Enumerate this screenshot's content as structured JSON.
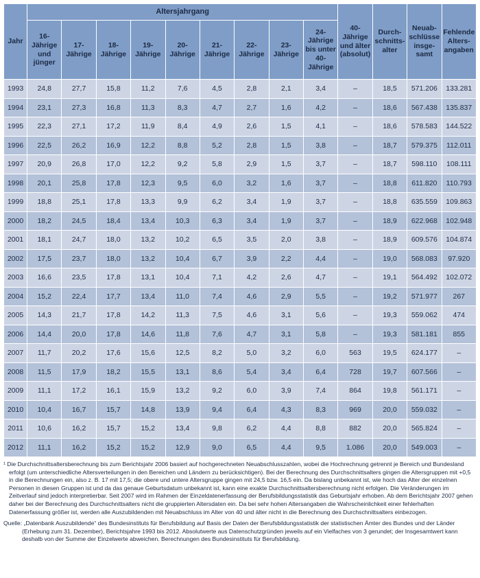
{
  "colors": {
    "header_bg": "#7f9dc7",
    "row_light": "#cdd5e5",
    "row_dark": "#b3c1d9",
    "grid_line": "#ffffff",
    "text": "#1c2a44"
  },
  "table": {
    "corner_header": "Jahr",
    "group_header": "Altersjahrgang",
    "age_headers": [
      "16-Jährige und jünger",
      "17-Jährige",
      "18-Jährige",
      "19-Jährige",
      "20-Jährige",
      "21-Jährige",
      "22-Jährige",
      "23-Jährige",
      "24-Jährige bis unter 40-Jährige"
    ],
    "right_headers": [
      "40-Jährige und älter (absolut)",
      "Durch­schnitts­alter",
      "Neuab­schlüsse insge­samt",
      "Fehlende Alters­angaben"
    ],
    "rows": [
      {
        "cells": [
          "1993",
          "24,8",
          "27,7",
          "15,8",
          "11,2",
          "7,6",
          "4,5",
          "2,8",
          "2,1",
          "3,4",
          "–",
          "18,5",
          "571.206",
          "133.281"
        ]
      },
      {
        "cells": [
          "1994",
          "23,1",
          "27,3",
          "16,8",
          "11,3",
          "8,3",
          "4,7",
          "2,7",
          "1,6",
          "4,2",
          "–",
          "18,6",
          "567.438",
          "135.837"
        ]
      },
      {
        "cells": [
          "1995",
          "22,3",
          "27,1",
          "17,2",
          "11,9",
          "8,4",
          "4,9",
          "2,6",
          "1,5",
          "4,1",
          "–",
          "18,6",
          "578.583",
          "144.522"
        ]
      },
      {
        "cells": [
          "1996",
          "22,5",
          "26,2",
          "16,9",
          "12,2",
          "8,8",
          "5,2",
          "2,8",
          "1,5",
          "3,8",
          "–",
          "18,7",
          "579.375",
          "112.011"
        ]
      },
      {
        "cells": [
          "1997",
          "20,9",
          "26,8",
          "17,0",
          "12,2",
          "9,2",
          "5,8",
          "2,9",
          "1,5",
          "3,7",
          "–",
          "18,7",
          "598.110",
          "108.111"
        ]
      },
      {
        "cells": [
          "1998",
          "20,1",
          "25,8",
          "17,8",
          "12,3",
          "9,5",
          "6,0",
          "3,2",
          "1,6",
          "3,7",
          "–",
          "18,8",
          "611.820",
          "110.793"
        ]
      },
      {
        "cells": [
          "1999",
          "18,8",
          "25,1",
          "17,8",
          "13,3",
          "9,9",
          "6,2",
          "3,4",
          "1,9",
          "3,7",
          "–",
          "18,8",
          "635.559",
          "109.863"
        ]
      },
      {
        "cells": [
          "2000",
          "18,2",
          "24,5",
          "18,4",
          "13,4",
          "10,3",
          "6,3",
          "3,4",
          "1,9",
          "3,7",
          "–",
          "18,9",
          "622.968",
          "102.948"
        ]
      },
      {
        "cells": [
          "2001",
          "18,1",
          "24,7",
          "18,0",
          "13,2",
          "10,2",
          "6,5",
          "3,5",
          "2,0",
          "3,8",
          "–",
          "18,9",
          "609.576",
          "104.874"
        ]
      },
      {
        "cells": [
          "2002",
          "17,5",
          "23,7",
          "18,0",
          "13,2",
          "10,4",
          "6,7",
          "3,9",
          "2,2",
          "4,4",
          "–",
          "19,0",
          "568.083",
          "97.920"
        ]
      },
      {
        "cells": [
          "2003",
          "16,6",
          "23,5",
          "17,8",
          "13,1",
          "10,4",
          "7,1",
          "4,2",
          "2,6",
          "4,7",
          "–",
          "19,1",
          "564.492",
          "102.072"
        ]
      },
      {
        "cells": [
          "2004",
          "15,2",
          "22,4",
          "17,7",
          "13,4",
          "11,0",
          "7,4",
          "4,6",
          "2,9",
          "5,5",
          "–",
          "19,2",
          "571.977",
          "267"
        ]
      },
      {
        "cells": [
          "2005",
          "14,3",
          "21,7",
          "17,8",
          "14,2",
          "11,3",
          "7,5",
          "4,6",
          "3,1",
          "5,6",
          "–",
          "19,3",
          "559.062",
          "474"
        ]
      },
      {
        "cells": [
          "2006",
          "14,4",
          "20,0",
          "17,8",
          "14,6",
          "11,8",
          "7,6",
          "4,7",
          "3,1",
          "5,8",
          "–",
          "19,3",
          "581.181",
          "855"
        ]
      },
      {
        "cells": [
          "2007",
          "11,7",
          "20,2",
          "17,6",
          "15,6",
          "12,5",
          "8,2",
          "5,0",
          "3,2",
          "6,0",
          "563",
          "19,5",
          "624.177",
          "–"
        ]
      },
      {
        "cells": [
          "2008",
          "11,5",
          "17,9",
          "18,2",
          "15,5",
          "13,1",
          "8,6",
          "5,4",
          "3,4",
          "6,4",
          "728",
          "19,7",
          "607.566",
          "–"
        ]
      },
      {
        "cells": [
          "2009",
          "11,1",
          "17,2",
          "16,1",
          "15,9",
          "13,2",
          "9,2",
          "6,0",
          "3,9",
          "7,4",
          "864",
          "19,8",
          "561.171",
          "–"
        ]
      },
      {
        "cells": [
          "2010",
          "10,4",
          "16,7",
          "15,7",
          "14,8",
          "13,9",
          "9,4",
          "6,4",
          "4,3",
          "8,3",
          "969",
          "20,0",
          "559.032",
          "–"
        ]
      },
      {
        "cells": [
          "2011",
          "10,6",
          "16,2",
          "15,7",
          "15,2",
          "13,4",
          "9,8",
          "6,2",
          "4,4",
          "8,8",
          "882",
          "20,0",
          "565.824",
          "–"
        ]
      },
      {
        "cells": [
          "2012",
          "11,1",
          "16,2",
          "15,2",
          "15,2",
          "12,9",
          "9,0",
          "6,5",
          "4,4",
          "9,5",
          "1.086",
          "20,0",
          "549.003",
          "–"
        ]
      }
    ]
  },
  "notes": {
    "footnote1": "¹ Die Durchschnittsaltersberechnung bis zum Berichtsjahr 2006 basiert auf hochgerechneten Neuabschlusszahlen, wobei die Hochrechnung getrennt je Bereich und Bundesland erfolgt (um unterschiedliche Altersverteilungen in den Bereichen und Ländern zu berücksichtigen). Bei der Berechnung des Durchschnittsalters gingen die Altersgruppen mit +0,5 in die Berechnungen ein, also z. B. 17 mit 17,5; die obere und untere Altersgruppe gingen mit 24,5 bzw. 16,5 ein. Da bislang unbekannt ist, wie hoch das Alter der einzelnen Personen in diesen Gruppen ist und da das genaue Geburtsdatum unbekannt ist, kann eine exakte Durchschnittsaltersberechnung nicht erfolgen. Die Veränderungen im Zeitverlauf sind jedoch interpretierbar. Seit 2007 wird im Rahmen der Einzeldatenerfassung der Berufsbildungsstatistik das Geburtsjahr erhoben. Ab dem Berichtsjahr 2007 gehen daher bei der Berechnung des Durchschnittsalters nicht die gruppierten Altersdaten ein. Da bei sehr hohen Altersangaben die Wahrscheinlichkeit einer fehlerhaften Datenerfassung größer ist, werden alle Auszubildenden mit Neuabschluss im Alter von 40 und älter nicht in die Berechnung des Durchschnittsalters einbezogen.",
    "source_label": "Quelle:",
    "source_text": "„Datenbank Auszubildende“ des Bundesinstituts für Berufsbildung auf Basis der Daten der Berufsbildungsstatistik der statistischen Ämter des Bundes und der Länder (Erhebung zum 31. Dezember), Berichtsjahre 1993 bis 2012. Absolutwerte aus Datenschutzgründen jeweils auf ein Vielfaches von 3 gerundet; der Insgesamtwert kann deshalb von der Summe der Einzelwerte abweichen. Berechnungen des Bundesinstituts für Berufsbildung."
  }
}
